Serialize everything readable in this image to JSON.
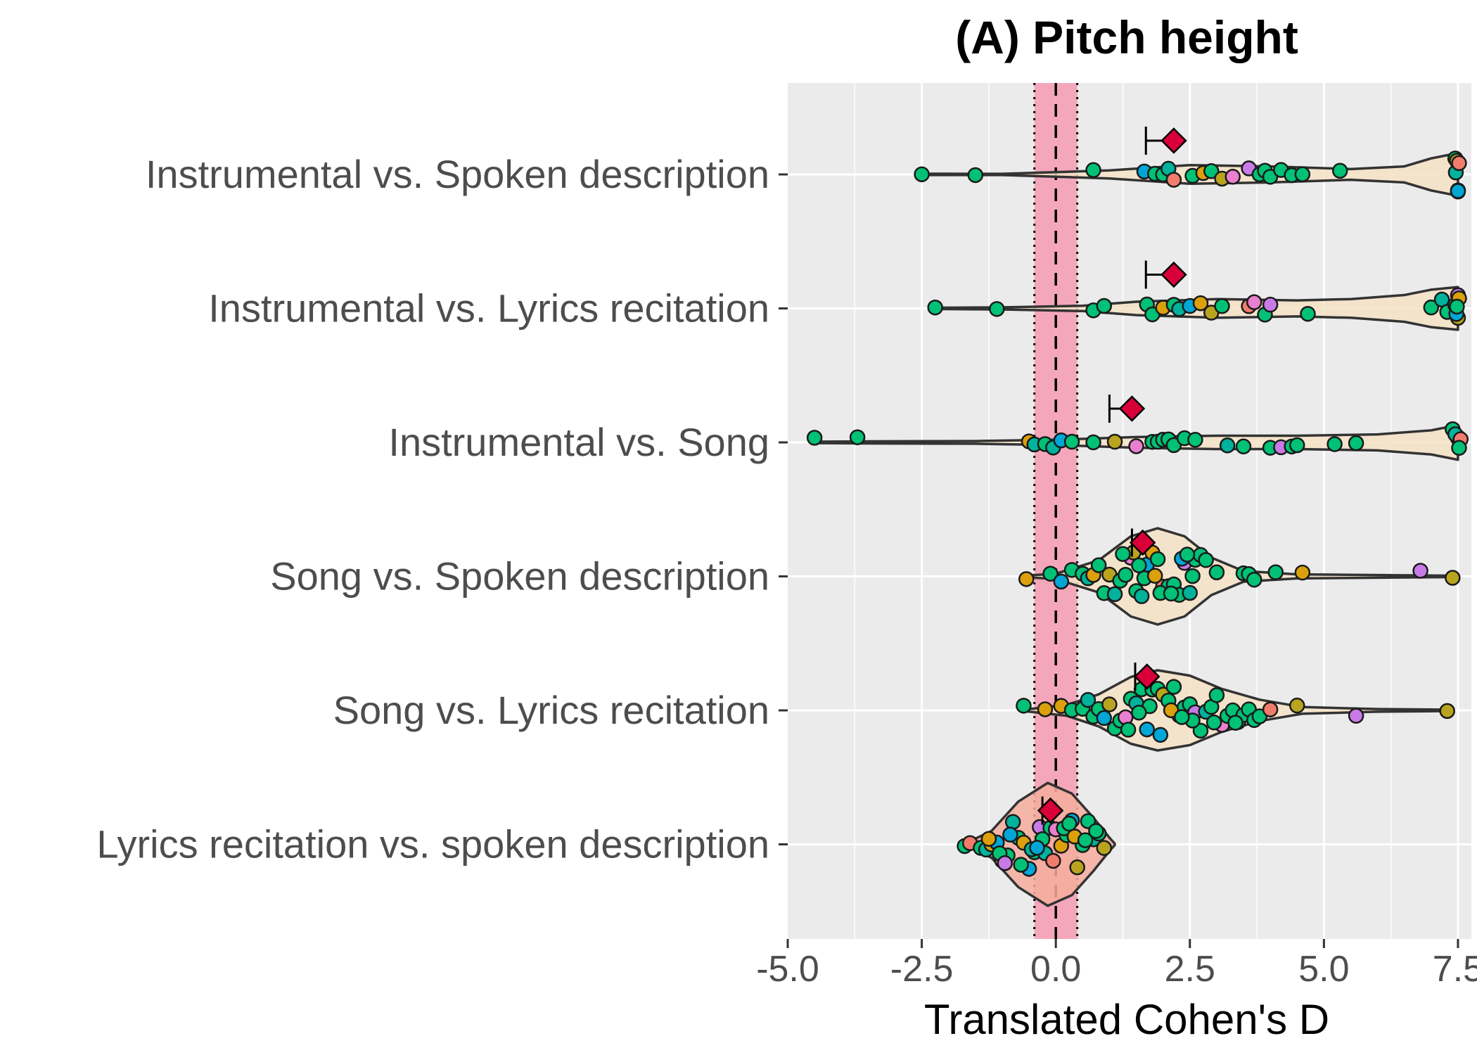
{
  "chart_data": {
    "type": "violin",
    "title": "(A) Pitch height",
    "xlabel": "Translated Cohen's D",
    "ylabel": "",
    "xlim": [
      -5.0,
      7.7
    ],
    "xticks": [
      -5.0,
      -2.5,
      0.0,
      2.5,
      5.0,
      7.5
    ],
    "xtick_labels": [
      "-5.0",
      "-2.5",
      "0.0",
      "2.5",
      "5.0",
      "7.5"
    ],
    "grid": true,
    "reference_band": {
      "from": -0.4,
      "to": 0.4,
      "color": "#f4a3b8"
    },
    "reference_line": 0.0,
    "categories": [
      "Instrumental vs. Spoken description",
      "Instrumental vs. Lyrics recitation",
      "Instrumental vs. Song",
      "Song vs. Spoken description",
      "Song vs. Lyrics recitation",
      "Lyrics recitation vs. spoken description"
    ],
    "estimates": [
      {
        "category": "Instrumental vs. Spoken description",
        "mean": 2.2,
        "ci_low": 1.68
      },
      {
        "category": "Instrumental vs. Lyrics recitation",
        "mean": 2.2,
        "ci_low": 1.68
      },
      {
        "category": "Instrumental vs. Song",
        "mean": 1.42,
        "ci_low": 1.0
      },
      {
        "category": "Song vs. Spoken description",
        "mean": 1.62,
        "ci_low": 1.42
      },
      {
        "category": "Song vs. Lyrics recitation",
        "mean": 1.7,
        "ci_low": 1.48
      },
      {
        "category": "Lyrics recitation vs. spoken description",
        "mean": -0.1,
        "ci_low": -0.25
      }
    ],
    "violins": [
      {
        "category": "Instrumental vs. Spoken description",
        "fill": "#f4e2c4",
        "shape": [
          [
            -2.5,
            0.005
          ],
          [
            -1.0,
            0.005
          ],
          [
            1.0,
            0.03
          ],
          [
            2.5,
            0.07
          ],
          [
            4.0,
            0.06
          ],
          [
            5.5,
            0.04
          ],
          [
            6.5,
            0.06
          ],
          [
            7.0,
            0.12
          ],
          [
            7.5,
            0.16
          ]
        ]
      },
      {
        "category": "Instrumental vs. Lyrics recitation",
        "fill": "#f4e2c4",
        "shape": [
          [
            -2.2,
            0.005
          ],
          [
            -1.0,
            0.008
          ],
          [
            0.5,
            0.02
          ],
          [
            1.5,
            0.05
          ],
          [
            3.0,
            0.07
          ],
          [
            4.5,
            0.06
          ],
          [
            5.5,
            0.07
          ],
          [
            6.5,
            0.1
          ],
          [
            7.0,
            0.14
          ],
          [
            7.5,
            0.16
          ]
        ]
      },
      {
        "category": "Instrumental vs. Song",
        "fill": "#f4e2c4",
        "shape": [
          [
            -4.5,
            0.005
          ],
          [
            -3.5,
            0.008
          ],
          [
            -1.5,
            0.01
          ],
          [
            0.0,
            0.02
          ],
          [
            1.5,
            0.04
          ],
          [
            3.0,
            0.05
          ],
          [
            4.5,
            0.05
          ],
          [
            6.0,
            0.06
          ],
          [
            7.0,
            0.09
          ],
          [
            7.5,
            0.13
          ]
        ]
      },
      {
        "category": "Song vs. Spoken description",
        "fill": "#f4e2c4",
        "shape": [
          [
            -0.6,
            0.005
          ],
          [
            0.0,
            0.02
          ],
          [
            0.8,
            0.12
          ],
          [
            1.4,
            0.3
          ],
          [
            1.9,
            0.36
          ],
          [
            2.4,
            0.3
          ],
          [
            2.9,
            0.14
          ],
          [
            3.5,
            0.04
          ],
          [
            4.5,
            0.015
          ],
          [
            6.0,
            0.01
          ],
          [
            7.4,
            0.005
          ]
        ]
      },
      {
        "category": "Song vs. Lyrics recitation",
        "fill": "#f4e2c4",
        "shape": [
          [
            -0.6,
            0.005
          ],
          [
            0.2,
            0.04
          ],
          [
            0.8,
            0.12
          ],
          [
            1.4,
            0.25
          ],
          [
            1.9,
            0.3
          ],
          [
            2.5,
            0.26
          ],
          [
            3.1,
            0.16
          ],
          [
            3.8,
            0.08
          ],
          [
            4.6,
            0.025
          ],
          [
            6.0,
            0.01
          ],
          [
            7.3,
            0.005
          ]
        ]
      },
      {
        "category": "Lyrics recitation vs. spoken description",
        "fill": "#f4ad9c",
        "shape": [
          [
            -1.7,
            0.005
          ],
          [
            -1.2,
            0.1
          ],
          [
            -0.7,
            0.32
          ],
          [
            -0.15,
            0.46
          ],
          [
            0.3,
            0.38
          ],
          [
            0.7,
            0.2
          ],
          [
            1.0,
            0.05
          ],
          [
            1.1,
            0.005
          ]
        ]
      }
    ],
    "point_colors": [
      "#00c176",
      "#00b29c",
      "#00a6d6",
      "#b8a41e",
      "#dba00c",
      "#e97fcf",
      "#c87ae6",
      "#f07c6c"
    ],
    "points": [
      {
        "category": "Instrumental vs. Spoken description",
        "x": [
          -2.5,
          -1.5,
          0.7,
          1.65,
          1.85,
          2.0,
          2.1,
          2.2,
          2.55,
          2.75,
          2.9,
          3.1,
          3.3,
          3.6,
          3.8,
          3.9,
          4.0,
          4.2,
          4.4,
          4.6,
          5.3,
          7.45,
          7.5,
          7.5,
          7.48,
          7.46,
          7.5,
          7.52
        ],
        "c": [
          0,
          0,
          0,
          2,
          0,
          0,
          1,
          7,
          0,
          4,
          0,
          3,
          5,
          6,
          0,
          0,
          0,
          0,
          0,
          0,
          0,
          0,
          2,
          4,
          3,
          1,
          2,
          7
        ]
      },
      {
        "category": "Instrumental vs. Lyrics recitation",
        "x": [
          -2.25,
          -1.1,
          0.7,
          0.9,
          1.7,
          1.8,
          2.0,
          2.2,
          2.3,
          2.5,
          2.7,
          2.9,
          3.1,
          3.6,
          3.7,
          3.9,
          4.0,
          4.7,
          7.0,
          7.2,
          7.3,
          7.45,
          7.5,
          7.47,
          7.5,
          7.52,
          7.48
        ],
        "c": [
          0,
          0,
          0,
          0,
          0,
          0,
          4,
          0,
          1,
          2,
          4,
          3,
          0,
          7,
          5,
          0,
          6,
          0,
          0,
          1,
          0,
          0,
          3,
          2,
          6,
          4,
          0
        ],
        "note": "fractional offsets defined below in script"
      },
      {
        "category": "Instrumental vs. Song",
        "x": [
          -4.5,
          -3.7,
          -0.5,
          -0.4,
          -0.2,
          -0.05,
          0.1,
          0.3,
          0.7,
          1.1,
          1.5,
          1.8,
          1.9,
          2.0,
          2.1,
          2.2,
          2.4,
          2.6,
          3.2,
          3.5,
          4.0,
          4.2,
          4.4,
          4.5,
          5.2,
          5.6,
          7.4,
          7.5,
          7.5,
          7.45,
          7.55,
          7.52
        ],
        "c": [
          0,
          0,
          4,
          1,
          0,
          1,
          2,
          0,
          0,
          3,
          5,
          0,
          0,
          0,
          0,
          0,
          0,
          0,
          1,
          0,
          0,
          6,
          0,
          0,
          0,
          0,
          0,
          4,
          2,
          1,
          7,
          0
        ]
      },
      {
        "category": "Song vs. Spoken description",
        "x": [
          -0.55,
          -0.1,
          0.1,
          0.3,
          0.5,
          0.6,
          0.7,
          0.8,
          0.9,
          1.0,
          1.1,
          1.2,
          1.3,
          1.4,
          1.5,
          1.6,
          1.7,
          1.8,
          1.9,
          2.0,
          2.1,
          2.2,
          2.3,
          2.4,
          2.5,
          2.6,
          2.7,
          2.8,
          1.45,
          1.65,
          1.95,
          2.15,
          2.35,
          2.55,
          1.25,
          1.55,
          1.85,
          2.45,
          3.0,
          3.5,
          3.6,
          3.7,
          4.1,
          4.6,
          6.8,
          7.4
        ],
        "c": [
          4,
          0,
          2,
          0,
          0,
          1,
          4,
          0,
          0,
          3,
          1,
          0,
          0,
          5,
          0,
          1,
          2,
          4,
          0,
          7,
          0,
          0,
          0,
          6,
          1,
          0,
          0,
          0,
          3,
          0,
          0,
          0,
          2,
          0,
          0,
          0,
          4,
          0,
          0,
          0,
          0,
          0,
          0,
          4,
          6,
          3
        ]
      },
      {
        "category": "Song vs. Lyrics recitation",
        "x": [
          -0.6,
          -0.2,
          0.1,
          0.3,
          0.5,
          0.6,
          0.7,
          0.8,
          0.9,
          1.0,
          1.1,
          1.2,
          1.3,
          1.4,
          1.5,
          1.6,
          1.7,
          1.8,
          1.9,
          2.0,
          2.1,
          2.2,
          2.3,
          2.4,
          2.5,
          2.6,
          2.7,
          2.8,
          2.9,
          3.0,
          3.1,
          3.2,
          3.3,
          3.4,
          3.5,
          3.6,
          3.7,
          1.35,
          1.75,
          2.15,
          2.55,
          2.95,
          3.35,
          1.55,
          1.95,
          2.35,
          3.8,
          4.0,
          4.5,
          5.6,
          7.3
        ],
        "c": [
          0,
          4,
          4,
          0,
          0,
          1,
          0,
          0,
          2,
          3,
          0,
          0,
          5,
          0,
          1,
          0,
          2,
          0,
          0,
          3,
          0,
          0,
          7,
          0,
          0,
          6,
          0,
          1,
          0,
          0,
          5,
          0,
          0,
          0,
          0,
          0,
          0,
          0,
          0,
          4,
          0,
          0,
          0,
          0,
          2,
          0,
          0,
          7,
          3,
          6,
          3
        ]
      },
      {
        "category": "Lyrics recitation vs. spoken description",
        "x": [
          -1.7,
          -1.6,
          -1.4,
          -1.3,
          -1.2,
          -1.1,
          -1.0,
          -0.9,
          -0.8,
          -0.7,
          -0.6,
          -0.5,
          -0.4,
          -0.3,
          -0.2,
          -0.1,
          0.0,
          0.1,
          0.2,
          0.3,
          0.4,
          0.5,
          0.6,
          0.7,
          0.8,
          0.9,
          -1.25,
          -1.05,
          -0.85,
          -0.65,
          -0.45,
          -0.25,
          -0.05,
          0.15,
          0.35,
          0.55,
          -0.95,
          -0.35,
          0.25,
          0.75
        ],
        "c": [
          0,
          7,
          0,
          1,
          4,
          2,
          3,
          0,
          1,
          0,
          4,
          2,
          0,
          6,
          1,
          0,
          5,
          4,
          0,
          2,
          3,
          0,
          0,
          1,
          0,
          3,
          4,
          0,
          2,
          0,
          1,
          0,
          7,
          0,
          4,
          0,
          6,
          2,
          0,
          0
        ]
      }
    ]
  }
}
